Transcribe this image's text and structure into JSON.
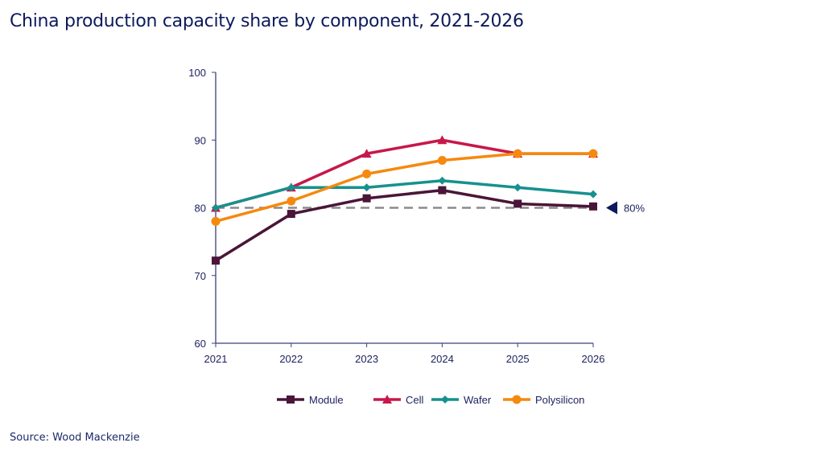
{
  "title": "China production capacity share by component, 2021-2026",
  "source": "Source: Wood Mackenzie",
  "chart_data": {
    "type": "line",
    "title": "China production capacity share by component, 2021-2026",
    "x": [
      "2021",
      "2022",
      "2023",
      "2024",
      "2025",
      "2026"
    ],
    "ylim": [
      60,
      100
    ],
    "yticks": [
      60,
      70,
      80,
      90,
      100
    ],
    "grid": false,
    "legend": "bottom",
    "series": [
      {
        "name": "Module",
        "values": [
          72.2,
          79.1,
          81.4,
          82.6,
          80.6,
          80.2
        ],
        "color": "#4a1538",
        "marker": "square"
      },
      {
        "name": "Cell",
        "values": [
          80,
          83,
          88,
          90,
          88,
          88
        ],
        "color": "#c8174b",
        "marker": "triangle"
      },
      {
        "name": "Wafer",
        "values": [
          80,
          83,
          83,
          84,
          83,
          82
        ],
        "color": "#16918f",
        "marker": "diamond"
      },
      {
        "name": "Polysilicon",
        "values": [
          78,
          81,
          85,
          87,
          88,
          88
        ],
        "color": "#f5890f",
        "marker": "circle"
      }
    ],
    "reference_line": {
      "value": 80,
      "label": "80%",
      "color": "#8a8a8a",
      "marker_color": "#0d1a5c"
    }
  }
}
